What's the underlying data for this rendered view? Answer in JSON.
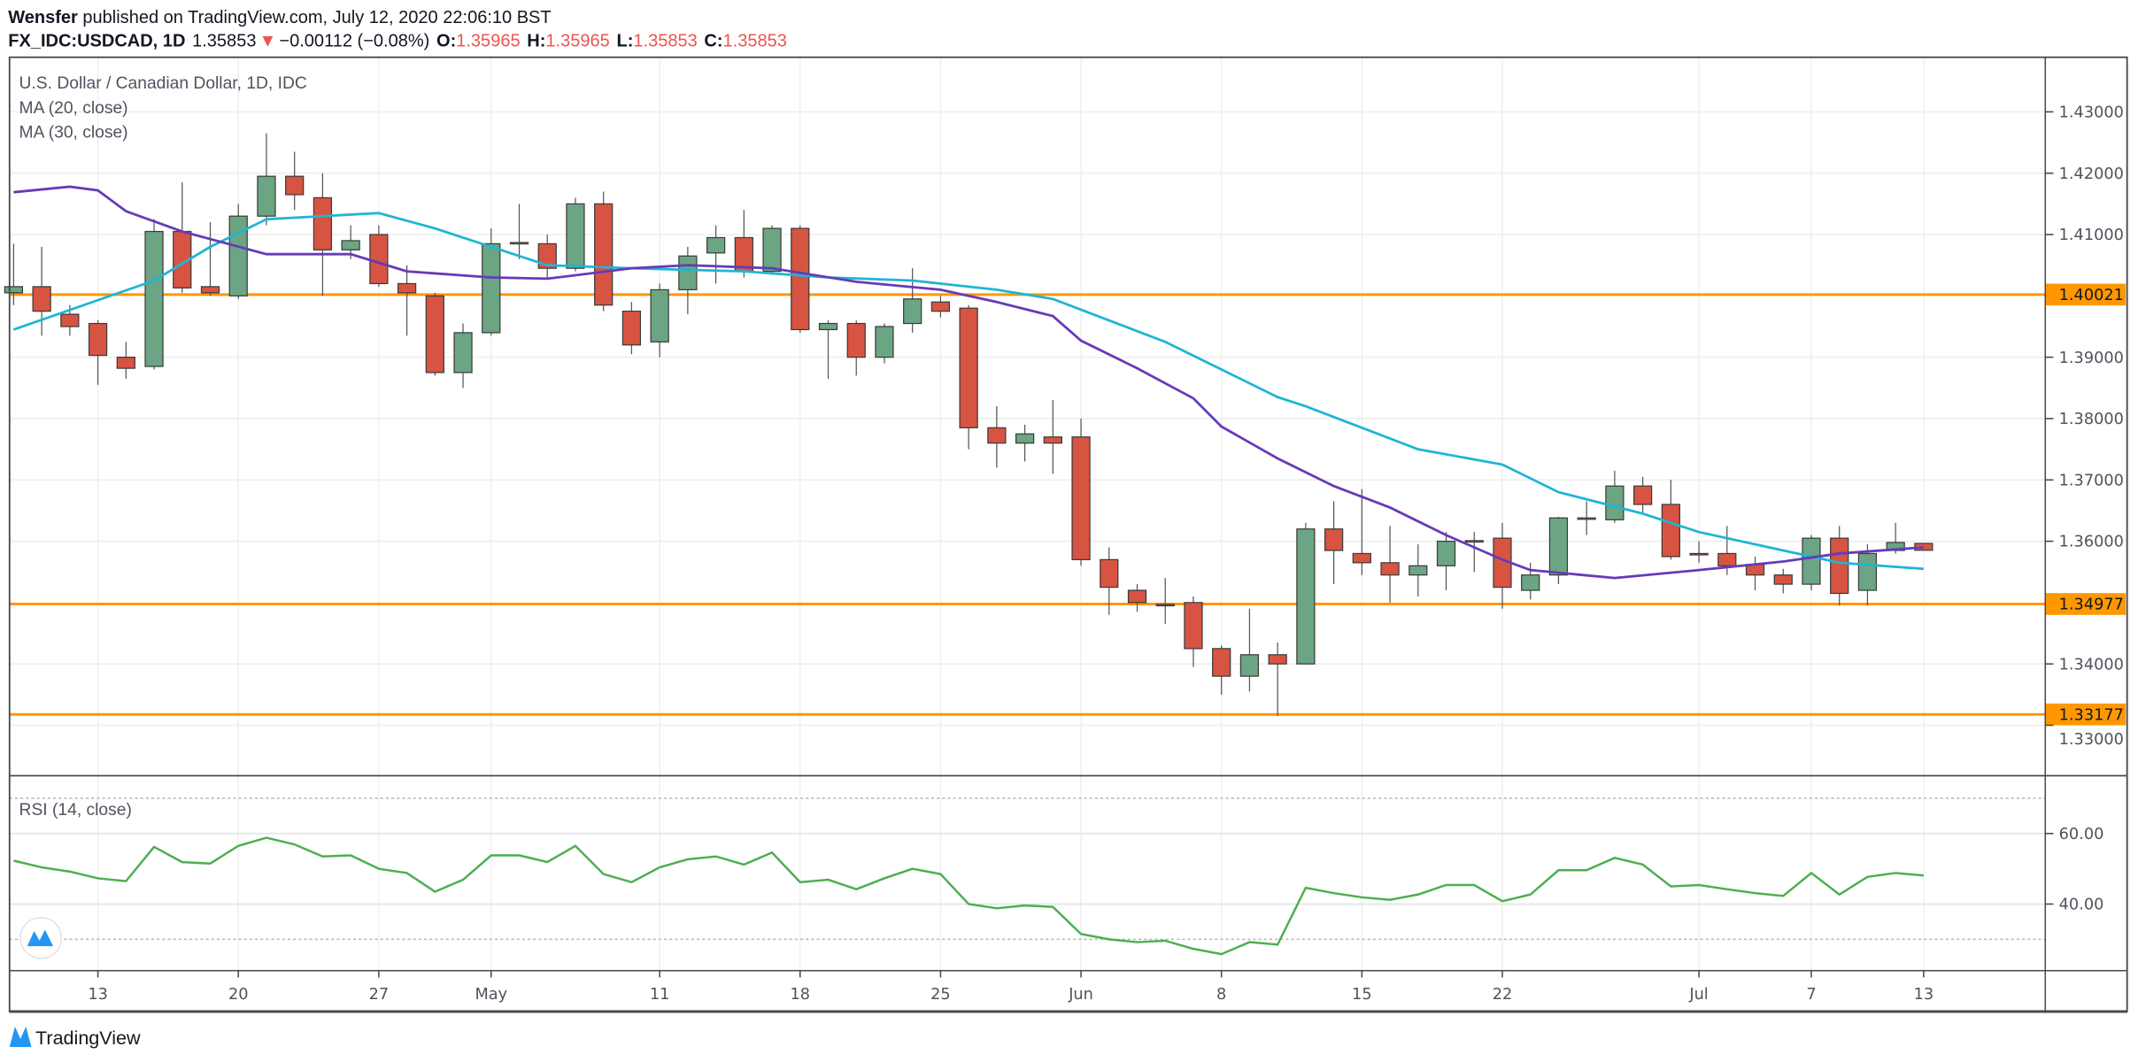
{
  "header": {
    "author": "Wensfer",
    "published": " published on TradingView.com, July 12, 2020 22:06:10 BST",
    "symbol": "FX_IDC:USDCAD, 1D",
    "last": "1.35853",
    "change": "−0.00112 (−0.08%)",
    "o_label": "O:",
    "o": "1.35965",
    "h_label": "H:",
    "h": "1.35965",
    "l_label": "L:",
    "l": "1.35853",
    "c_label": "C:",
    "c": "1.35853"
  },
  "legend": {
    "title": "U.S. Dollar / Canadian Dollar, 1D, IDC",
    "ma20": "MA (20, close)",
    "ma30": "MA (30, close)",
    "rsi": "RSI (14, close)"
  },
  "footer": {
    "brand": "TradingView"
  },
  "colors": {
    "up": "#6ba583",
    "down": "#d75442",
    "ma20": "#1fb5d4",
    "ma30": "#673ab7",
    "level": "#ff9800",
    "rsi": "#4caf50",
    "arrow_down": "#ef5350"
  },
  "chart_data": [
    {
      "type": "candlestick",
      "title": "U.S. Dollar / Canadian Dollar, 1D, IDC",
      "ylim": [
        1.322,
        1.4389
      ],
      "yticks": [
        "1.43000",
        "1.42000",
        "1.41000",
        "1.39000",
        "1.38000",
        "1.37000",
        "1.36000",
        "1.34000",
        "1.33000"
      ],
      "levels": [
        {
          "value": 1.40021,
          "label": "1.40021"
        },
        {
          "value": 1.34977,
          "label": "1.34977"
        },
        {
          "value": 1.33177,
          "label": "1.33177"
        }
      ],
      "xticks": [
        [
          "2020-04-13",
          "13"
        ],
        [
          "2020-04-20",
          "20"
        ],
        [
          "2020-04-27",
          "27"
        ],
        [
          "2020-05-01",
          "May"
        ],
        [
          "2020-05-11",
          "11"
        ],
        [
          "2020-05-18",
          "18"
        ],
        [
          "2020-05-25",
          "25"
        ],
        [
          "2020-06-01",
          "Jun"
        ],
        [
          "2020-06-08",
          "8"
        ],
        [
          "2020-06-15",
          "15"
        ],
        [
          "2020-06-22",
          "22"
        ],
        [
          "2020-07-01",
          "Jul"
        ],
        [
          "2020-07-07",
          "7"
        ],
        [
          "2020-07-13",
          "13"
        ]
      ],
      "grid": true,
      "candles_columns": [
        "date",
        "open",
        "high",
        "low",
        "close"
      ],
      "candles": [
        [
          "2020-04-08",
          1.4005,
          1.4085,
          1.3985,
          1.4015
        ],
        [
          "2020-04-09",
          1.4015,
          1.408,
          1.3935,
          1.3975
        ],
        [
          "2020-04-10",
          1.397,
          1.3985,
          1.3935,
          1.395
        ],
        [
          "2020-04-13",
          1.3955,
          1.396,
          1.3855,
          1.3903
        ],
        [
          "2020-04-14",
          1.39,
          1.3925,
          1.3865,
          1.3882
        ],
        [
          "2020-04-15",
          1.3885,
          1.4125,
          1.388,
          1.4105
        ],
        [
          "2020-04-16",
          1.4105,
          1.4185,
          1.4005,
          1.4013
        ],
        [
          "2020-04-17",
          1.4015,
          1.412,
          1.4,
          1.4005
        ],
        [
          "2020-04-20",
          1.4,
          1.415,
          1.3995,
          1.413
        ],
        [
          "2020-04-21",
          1.413,
          1.4265,
          1.4115,
          1.4195
        ],
        [
          "2020-04-22",
          1.4195,
          1.4235,
          1.414,
          1.4165
        ],
        [
          "2020-04-23",
          1.416,
          1.42,
          1.4,
          1.4075
        ],
        [
          "2020-04-24",
          1.4075,
          1.4115,
          1.406,
          1.409
        ],
        [
          "2020-04-27",
          1.41,
          1.4115,
          1.4015,
          1.402
        ],
        [
          "2020-04-28",
          1.402,
          1.405,
          1.3935,
          1.4005
        ],
        [
          "2020-04-29",
          1.4,
          1.4005,
          1.387,
          1.3875
        ],
        [
          "2020-04-30",
          1.3875,
          1.3955,
          1.385,
          1.394
        ],
        [
          "2020-05-01",
          1.394,
          1.411,
          1.3935,
          1.4085
        ],
        [
          "2020-05-04",
          1.4085,
          1.415,
          1.406,
          1.4087
        ],
        [
          "2020-05-05",
          1.4085,
          1.41,
          1.403,
          1.4045
        ],
        [
          "2020-05-06",
          1.4045,
          1.416,
          1.404,
          1.415
        ],
        [
          "2020-05-07",
          1.415,
          1.417,
          1.3975,
          1.3985
        ],
        [
          "2020-05-08",
          1.3975,
          1.399,
          1.3905,
          1.392
        ],
        [
          "2020-05-11",
          1.3925,
          1.402,
          1.39,
          1.401
        ],
        [
          "2020-05-12",
          1.401,
          1.408,
          1.397,
          1.4065
        ],
        [
          "2020-05-13",
          1.407,
          1.4115,
          1.402,
          1.4095
        ],
        [
          "2020-05-14",
          1.4095,
          1.414,
          1.403,
          1.404
        ],
        [
          "2020-05-15",
          1.404,
          1.4115,
          1.4035,
          1.411
        ],
        [
          "2020-05-18",
          1.411,
          1.4115,
          1.394,
          1.3945
        ],
        [
          "2020-05-19",
          1.3945,
          1.396,
          1.3865,
          1.3955
        ],
        [
          "2020-05-20",
          1.3955,
          1.396,
          1.387,
          1.39
        ],
        [
          "2020-05-21",
          1.39,
          1.3955,
          1.389,
          1.395
        ],
        [
          "2020-05-22",
          1.3955,
          1.4045,
          1.394,
          1.3995
        ],
        [
          "2020-05-25",
          1.399,
          1.4,
          1.3965,
          1.3975
        ],
        [
          "2020-05-26",
          1.398,
          1.3985,
          1.375,
          1.3785
        ],
        [
          "2020-05-27",
          1.3785,
          1.382,
          1.372,
          1.376
        ],
        [
          "2020-05-28",
          1.376,
          1.379,
          1.373,
          1.3775
        ],
        [
          "2020-05-29",
          1.377,
          1.383,
          1.371,
          1.376
        ],
        [
          "2020-06-01",
          1.377,
          1.38,
          1.356,
          1.357
        ],
        [
          "2020-06-02",
          1.357,
          1.359,
          1.348,
          1.3525
        ],
        [
          "2020-06-03",
          1.352,
          1.353,
          1.3485,
          1.35
        ],
        [
          "2020-06-04",
          1.3497,
          1.354,
          1.3465,
          1.3495
        ],
        [
          "2020-06-05",
          1.35,
          1.351,
          1.3395,
          1.3425
        ],
        [
          "2020-06-08",
          1.3425,
          1.343,
          1.335,
          1.338
        ],
        [
          "2020-06-09",
          1.338,
          1.349,
          1.3355,
          1.3415
        ],
        [
          "2020-06-10",
          1.3415,
          1.3435,
          1.3315,
          1.34
        ],
        [
          "2020-06-11",
          1.34,
          1.363,
          1.34,
          1.362
        ],
        [
          "2020-06-12",
          1.362,
          1.3665,
          1.353,
          1.3585
        ],
        [
          "2020-06-15",
          1.358,
          1.3685,
          1.3545,
          1.3565
        ],
        [
          "2020-06-16",
          1.3565,
          1.3625,
          1.35,
          1.3545
        ],
        [
          "2020-06-17",
          1.3545,
          1.3595,
          1.351,
          1.356
        ],
        [
          "2020-06-18",
          1.356,
          1.3615,
          1.352,
          1.36
        ],
        [
          "2020-06-19",
          1.36,
          1.3615,
          1.355,
          1.3601
        ],
        [
          "2020-06-22",
          1.3605,
          1.363,
          1.349,
          1.3525
        ],
        [
          "2020-06-23",
          1.352,
          1.3565,
          1.3505,
          1.3545
        ],
        [
          "2020-06-24",
          1.3545,
          1.364,
          1.353,
          1.3638
        ],
        [
          "2020-06-25",
          1.3637,
          1.3665,
          1.361,
          1.3638
        ],
        [
          "2020-06-26",
          1.3635,
          1.3715,
          1.363,
          1.369
        ],
        [
          "2020-06-29",
          1.369,
          1.3705,
          1.3645,
          1.366
        ],
        [
          "2020-06-30",
          1.366,
          1.37,
          1.357,
          1.3575
        ],
        [
          "2020-07-01",
          1.358,
          1.36,
          1.3565,
          1.3578
        ],
        [
          "2020-07-02",
          1.358,
          1.3625,
          1.3545,
          1.356
        ],
        [
          "2020-07-03",
          1.3562,
          1.3575,
          1.352,
          1.3545
        ],
        [
          "2020-07-06",
          1.3545,
          1.3555,
          1.3515,
          1.353
        ],
        [
          "2020-07-07",
          1.353,
          1.361,
          1.352,
          1.3605
        ],
        [
          "2020-07-08",
          1.3605,
          1.3625,
          1.3495,
          1.3515
        ],
        [
          "2020-07-09",
          1.352,
          1.3595,
          1.3495,
          1.358
        ],
        [
          "2020-07-10",
          1.3585,
          1.363,
          1.358,
          1.3598
        ],
        [
          "2020-07-13",
          1.35965,
          1.35965,
          1.35853,
          1.35853
        ]
      ],
      "series": [
        {
          "name": "MA (20, close)",
          "type": "line",
          "points": [
            [
              "2020-04-08",
              1.3945
            ],
            [
              "2020-04-15",
              1.4025
            ],
            [
              "2020-04-17",
              1.408
            ],
            [
              "2020-04-21",
              1.4125
            ],
            [
              "2020-04-27",
              1.4135
            ],
            [
              "2020-04-29",
              1.411
            ],
            [
              "2020-05-05",
              1.405
            ],
            [
              "2020-05-08",
              1.4045
            ],
            [
              "2020-05-14",
              1.404
            ],
            [
              "2020-05-19",
              1.403
            ],
            [
              "2020-05-22",
              1.4025
            ],
            [
              "2020-05-27",
              1.401
            ],
            [
              "2020-05-29",
              1.3995
            ],
            [
              "2020-06-04",
              1.3925
            ],
            [
              "2020-06-08",
              1.388
            ],
            [
              "2020-06-10",
              1.3835
            ],
            [
              "2020-06-11",
              1.382
            ],
            [
              "2020-06-15",
              1.3785
            ],
            [
              "2020-06-17",
              1.375
            ],
            [
              "2020-06-22",
              1.3725
            ],
            [
              "2020-06-24",
              1.368
            ],
            [
              "2020-06-29",
              1.3645
            ],
            [
              "2020-07-01",
              1.3615
            ],
            [
              "2020-07-06",
              1.3585
            ],
            [
              "2020-07-08",
              1.3565
            ],
            [
              "2020-07-13",
              1.3555
            ]
          ]
        },
        {
          "name": "MA (30, close)",
          "type": "line",
          "points": [
            [
              "2020-04-08",
              1.4169
            ],
            [
              "2020-04-10",
              1.4178
            ],
            [
              "2020-04-13",
              1.4172
            ],
            [
              "2020-04-14",
              1.4138
            ],
            [
              "2020-04-16",
              1.4105
            ],
            [
              "2020-04-21",
              1.4068
            ],
            [
              "2020-04-24",
              1.4068
            ],
            [
              "2020-04-28",
              1.404
            ],
            [
              "2020-05-01",
              1.403
            ],
            [
              "2020-05-05",
              1.4028
            ],
            [
              "2020-05-08",
              1.4045
            ],
            [
              "2020-05-12",
              1.405
            ],
            [
              "2020-05-15",
              1.4045
            ],
            [
              "2020-05-20",
              1.4023
            ],
            [
              "2020-05-25",
              1.401
            ],
            [
              "2020-05-27",
              1.399
            ],
            [
              "2020-05-29",
              1.3967
            ],
            [
              "2020-06-01",
              1.3927
            ],
            [
              "2020-06-03",
              1.3882
            ],
            [
              "2020-06-05",
              1.3833
            ],
            [
              "2020-06-08",
              1.3787
            ],
            [
              "2020-06-10",
              1.3735
            ],
            [
              "2020-06-12",
              1.369
            ],
            [
              "2020-06-16",
              1.3655
            ],
            [
              "2020-06-18",
              1.361
            ],
            [
              "2020-06-22",
              1.357
            ],
            [
              "2020-06-23",
              1.3553
            ],
            [
              "2020-06-26",
              1.354
            ],
            [
              "2020-07-01",
              1.3553
            ],
            [
              "2020-07-06",
              1.3567
            ],
            [
              "2020-07-08",
              1.358
            ],
            [
              "2020-07-13",
              1.359
            ]
          ]
        }
      ]
    },
    {
      "type": "line",
      "title": "RSI (14, close)",
      "ylim": [
        21.5,
        76
      ],
      "yticks": [
        [
          "60",
          "60.00"
        ],
        [
          "40",
          "40.00"
        ]
      ],
      "bands": [
        70,
        30
      ],
      "values": [
        52.3,
        50.4,
        49.2,
        47.3,
        46.5,
        56.2,
        51.9,
        51.5,
        56.5,
        58.8,
        56.9,
        53.5,
        53.8,
        50,
        48.8,
        43.5,
        46.9,
        53.8,
        53.8,
        51.9,
        56.5,
        48.5,
        46.2,
        50.4,
        52.7,
        53.5,
        51.2,
        54.6,
        46.2,
        46.9,
        44.2,
        47.3,
        50,
        48.5,
        40,
        38.8,
        39.6,
        39.2,
        31.5,
        30,
        29.2,
        29.6,
        27.3,
        25.8,
        29.2,
        28.5,
        44.6,
        43.1,
        41.9,
        41.2,
        42.7,
        45.4,
        45.4,
        40.8,
        42.7,
        49.6,
        49.6,
        53.1,
        51.2,
        45,
        45.4,
        44.2,
        43.1,
        42.3,
        48.8,
        42.7,
        47.7,
        48.8,
        48.1
      ]
    }
  ]
}
